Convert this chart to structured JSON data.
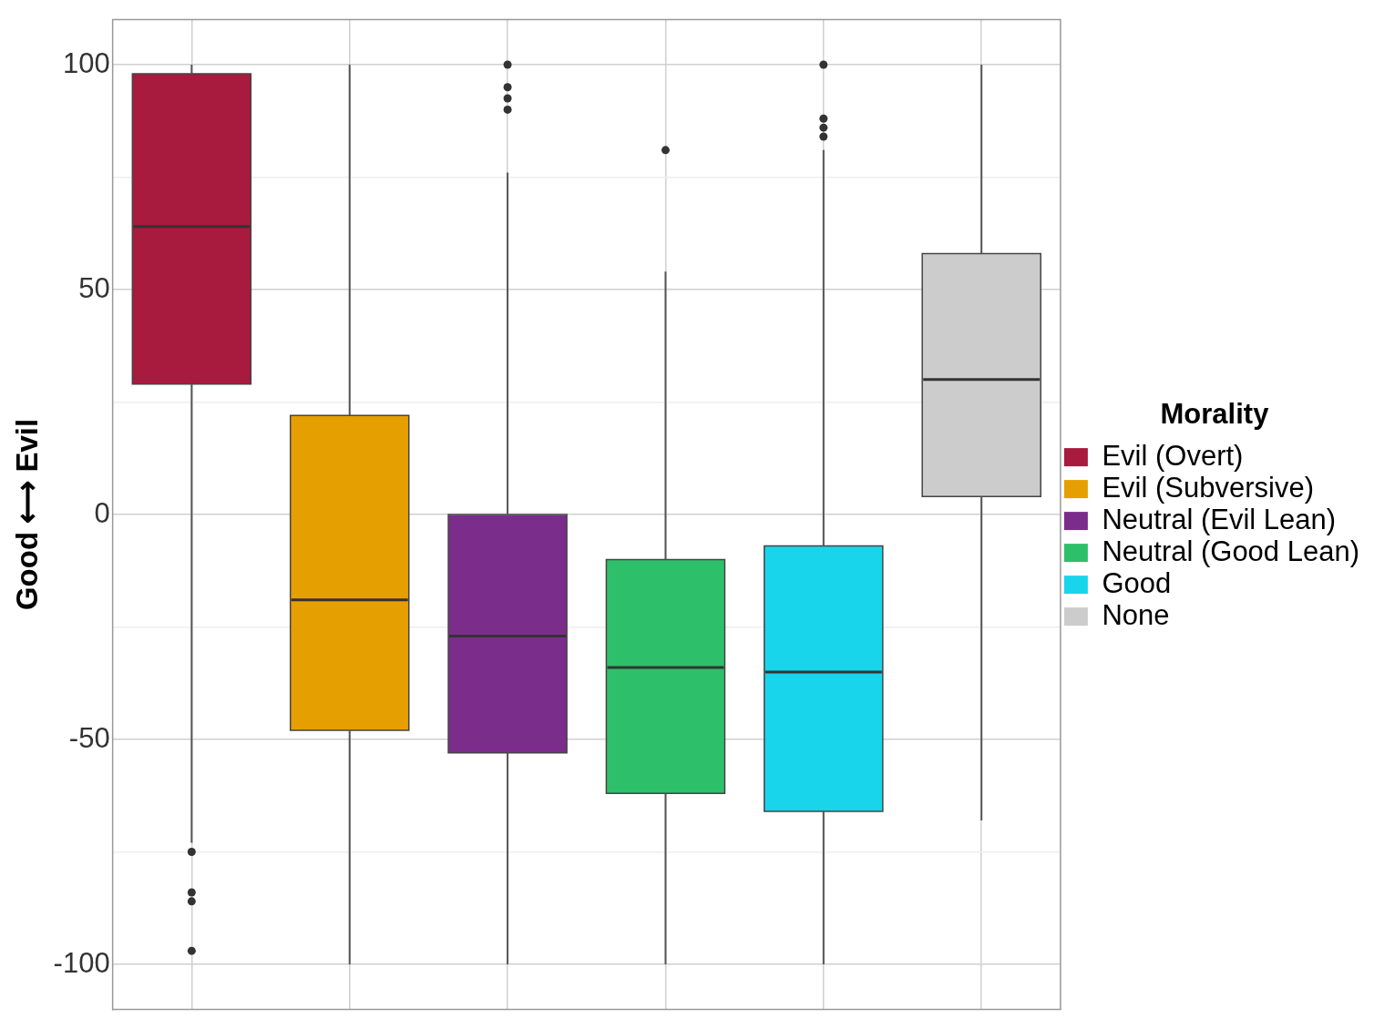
{
  "chart_data": {
    "type": "box",
    "ylabel": "Good ⟷ Evil",
    "legend_title": "Morality",
    "categories": [
      null,
      null,
      null,
      null,
      null,
      null
    ],
    "series": [
      {
        "name": "Evil (Overt)",
        "color": "#a91a3f",
        "boxes": [
          {
            "low": -73,
            "q1": 29,
            "median": 64,
            "q3": 98,
            "high": 100,
            "outliers": [
              -75,
              -84,
              -86,
              -97
            ]
          },
          null,
          null,
          null,
          null,
          null
        ]
      },
      {
        "name": "Evil (Subversive)",
        "color": "#e69f00",
        "boxes": [
          null,
          {
            "low": -100,
            "q1": -48,
            "median": -19,
            "q3": 22,
            "high": 100
          },
          null,
          null,
          null,
          null
        ]
      },
      {
        "name": "Neutral (Evil Lean)",
        "color": "#7b2d8b",
        "boxes": [
          null,
          null,
          {
            "low": -100,
            "q1": -53,
            "median": -27,
            "q3": 0,
            "high": 76,
            "outliers": [
              100,
              95,
              92.5,
              90
            ]
          },
          null,
          null,
          null
        ]
      },
      {
        "name": "Neutral (Good Lean)",
        "color": "#2ebf6b",
        "boxes": [
          null,
          null,
          null,
          {
            "low": -100,
            "q1": -62,
            "median": -34,
            "q3": -10,
            "high": 54,
            "outliers": [
              81
            ]
          },
          null,
          null
        ]
      },
      {
        "name": "Good",
        "color": "#19d5ec",
        "boxes": [
          null,
          null,
          null,
          null,
          {
            "low": -100,
            "q1": -66,
            "median": -35,
            "q3": -7,
            "high": 81,
            "outliers": [
              100,
              88,
              86,
              84
            ]
          },
          null
        ]
      },
      {
        "name": "None",
        "color": "#cccccc",
        "boxes": [
          null,
          null,
          null,
          null,
          null,
          {
            "low": -68,
            "q1": 4,
            "median": 30,
            "q3": 58,
            "high": 100
          }
        ]
      }
    ],
    "ylim": [
      -110,
      110
    ],
    "yticks": [
      -100,
      {
        "value": -75,
        "label": null
      },
      -50,
      {
        "value": -25,
        "label": null
      },
      0,
      {
        "value": 25,
        "label": null
      },
      50,
      {
        "value": 75,
        "label": null
      },
      100
    ],
    "grid": true,
    "legend": "right",
    "tick_labels": "y"
  }
}
